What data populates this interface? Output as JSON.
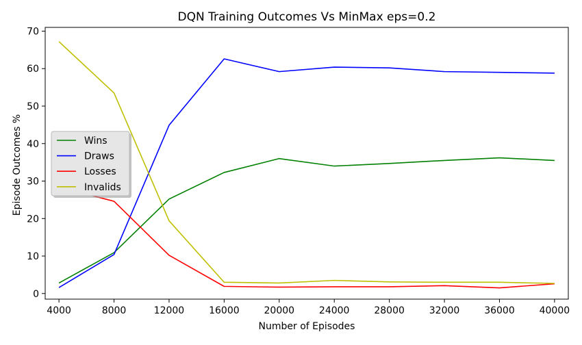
{
  "chart_data": {
    "type": "line",
    "title": "DQN Training Outcomes Vs MinMax eps=0.2",
    "xlabel": "Number of Episodes",
    "ylabel": "Episode Outcomes %",
    "x": [
      4000,
      8000,
      12000,
      16000,
      20000,
      24000,
      28000,
      32000,
      36000,
      40000
    ],
    "xticks": [
      "4000",
      "8000",
      "12000",
      "16000",
      "20000",
      "24000",
      "28000",
      "32000",
      "36000",
      "40000"
    ],
    "yticks": [
      "0",
      "10",
      "20",
      "30",
      "40",
      "50",
      "60",
      "70"
    ],
    "xlim": [
      3000,
      41000
    ],
    "ylim": [
      -1.5,
      71
    ],
    "grid": false,
    "legend_position": "center-left",
    "series": [
      {
        "name": "Wins",
        "color": "#008000",
        "values": [
          2.8,
          10.9,
          25.2,
          32.3,
          36.0,
          34.0,
          34.7,
          35.5,
          36.2,
          35.5
        ]
      },
      {
        "name": "Draws",
        "color": "#0000ff",
        "values": [
          1.6,
          10.4,
          44.9,
          62.6,
          59.2,
          60.4,
          60.2,
          59.2,
          59.0,
          58.8
        ]
      },
      {
        "name": "Losses",
        "color": "#ff0000",
        "values": [
          28.4,
          24.6,
          10.2,
          1.9,
          1.7,
          1.8,
          1.8,
          2.1,
          1.5,
          2.6
        ]
      },
      {
        "name": "Invalids",
        "color": "#bfbf00",
        "values": [
          67.2,
          53.5,
          19.4,
          3.0,
          2.8,
          3.5,
          3.1,
          3.0,
          3.0,
          2.7
        ]
      }
    ]
  }
}
